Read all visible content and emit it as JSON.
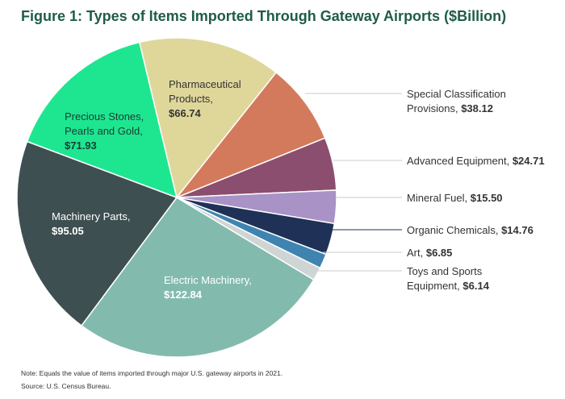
{
  "title": "Figure 1: Types of Items Imported Through Gateway Airports ($Billion)",
  "note": "Note: Equals the value of items imported through major U.S. gateway airports in 2021.",
  "source": "Source: U.S. Census Bureau.",
  "chart_data": {
    "type": "pie",
    "title": "Figure 1: Types of Items Imported Through Gateway Airports ($Billion)",
    "unit": "$Billion",
    "labels": [
      "Electric Machinery,",
      "Machinery Parts,",
      "Precious Stones, Pearls and Gold,",
      "Pharmaceutical Products,",
      "Special Classification Provisions,",
      "Advanced Equipment,",
      "Mineral Fuel,",
      "Organic Chemicals,",
      "Art,",
      "Toys and Sports Equipment,"
    ],
    "values": [
      122.84,
      95.05,
      71.93,
      66.74,
      38.12,
      24.71,
      15.5,
      14.76,
      6.85,
      6.14
    ],
    "value_labels": [
      "$122.84",
      "$95.05",
      "$71.93",
      "$66.74",
      "$38.12",
      "$24.71",
      "$15.50",
      "$14.76",
      "$6.85",
      "$6.14"
    ],
    "colors": [
      "#82bbae",
      "#3e4f51",
      "#1ee690",
      "#dfd79a",
      "#d47a5c",
      "#8b4e6e",
      "#a892c6",
      "#1f3157",
      "#3f84b0",
      "#cfd4d4"
    ]
  }
}
